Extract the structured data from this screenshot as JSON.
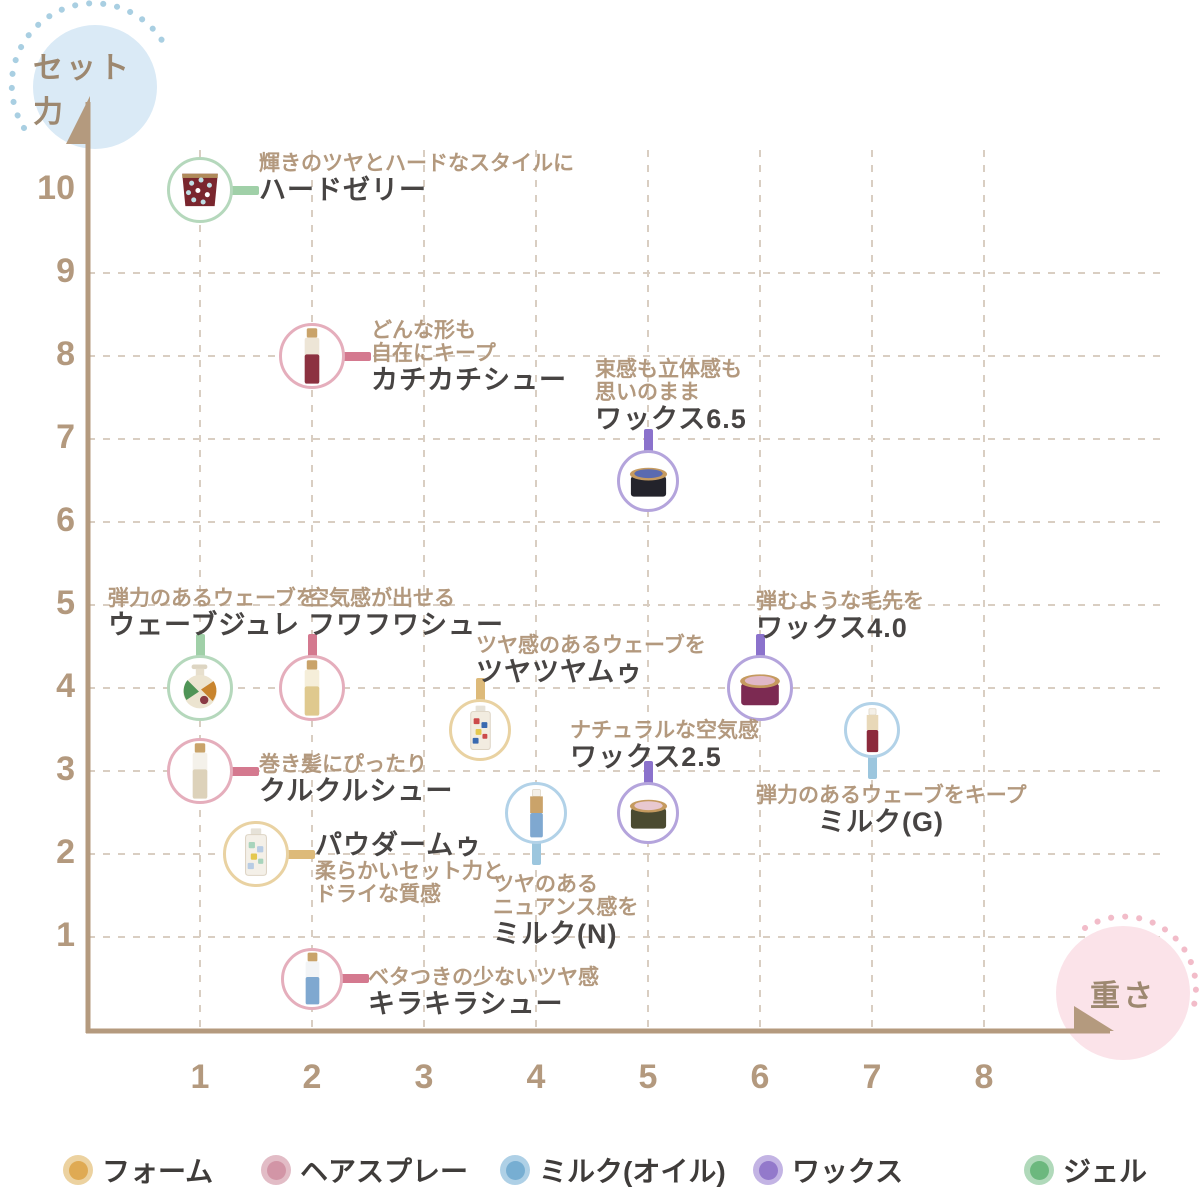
{
  "axis": {
    "y_label": "セット力",
    "x_label": "重さ",
    "y_bubble_color": "#daeaf6",
    "y_dots_color": "#a9cfe2",
    "x_bubble_color": "#fbe3e9",
    "x_dots_color": "#f2bcc9",
    "axis_color": "#b49a7e",
    "grid_color": "#d9cec2",
    "tick_color": "#b3997e",
    "y_ticks": [
      10,
      9,
      8,
      7,
      6,
      5,
      4,
      3,
      2,
      1
    ],
    "x_ticks": [
      1,
      2,
      3,
      4,
      5,
      6,
      7,
      8
    ]
  },
  "categories": {
    "foam": {
      "label": "フォーム",
      "dot": "#dfaa53",
      "halo": "#ecd2a0",
      "ring": "#e9d2a2",
      "stub": "#ddba7a"
    },
    "spray": {
      "label": "ヘアスプレー",
      "dot": "#d295a6",
      "halo": "#e2bcc6",
      "ring": "#e5aebc",
      "stub": "#d4798f"
    },
    "milk": {
      "label": "ミルク(オイル)",
      "dot": "#77aed2",
      "halo": "#aed0e6",
      "ring": "#b2d2e8",
      "stub": "#9cc6de"
    },
    "wax": {
      "label": "ワックス",
      "dot": "#9379cb",
      "halo": "#c3b4e4",
      "ring": "#b4a4dc",
      "stub": "#8b72cc"
    },
    "gel": {
      "label": "ジェル",
      "dot": "#6cb87e",
      "halo": "#b0d9ba",
      "ring": "#b5d8bc",
      "stub": "#a0d0a8"
    }
  },
  "legend_order": [
    "foam",
    "spray",
    "milk",
    "wax",
    "gel"
  ],
  "chart_data": {
    "type": "scatter",
    "title": "",
    "xlabel": "重さ",
    "ylabel": "セット力",
    "xlim": [
      0,
      9
    ],
    "ylim": [
      0,
      11
    ],
    "grid": true,
    "legend_position": "bottom",
    "points": [
      {
        "name": "ハードゼリー",
        "x": 1,
        "y": 10,
        "category": "gel",
        "desc": [
          "輝きのツヤとハードなスタイルに"
        ],
        "label_side": "right",
        "icon": {
          "shape": "cup",
          "c1": "#7a262e",
          "c2": "#bfe0e6",
          "c3": "#b08a5a"
        }
      },
      {
        "name": "カチカチシュー",
        "x": 2,
        "y": 8,
        "category": "spray",
        "desc": [
          "どんな形も",
          "自在にキープ"
        ],
        "label_side": "right",
        "icon": {
          "shape": "spray",
          "c1": "#ede5d6",
          "c2": "#8c3140",
          "c3": "#c9a36a"
        }
      },
      {
        "name": "ワックス6.5",
        "x": 5,
        "y": 6.5,
        "category": "wax",
        "desc": [
          "束感も立体感も",
          "思いのまま"
        ],
        "label_side": "above",
        "icon": {
          "shape": "jar",
          "c1": "#23232b",
          "c2": "#5a6ab0",
          "c3": "#c59a5f"
        }
      },
      {
        "name": "ウェーブジュレ",
        "x": 1,
        "y": 4,
        "category": "gel",
        "desc": [
          "弾力のあるウェーブを"
        ],
        "label_side": "above",
        "icon": {
          "shape": "pump",
          "c1": "#4f9456",
          "c2": "#c8842e",
          "c3": "#ece4d0"
        }
      },
      {
        "name": "フワフワシュー",
        "x": 2,
        "y": 4,
        "category": "spray",
        "desc": [
          "空気感が出せる"
        ],
        "label_side": "above",
        "icon": {
          "shape": "spray",
          "c1": "#f5eed9",
          "c2": "#dfc98e",
          "c3": "#c9a36a"
        }
      },
      {
        "name": "ツヤツヤムゥ",
        "x": 3.5,
        "y": 3.5,
        "category": "foam",
        "desc": [
          "ツヤ感のあるウェーブを"
        ],
        "label_side": "above",
        "icon": {
          "shape": "bottle",
          "c1": "#f2ece0",
          "c2": "#cc4a4a",
          "c3": "#3a6ab0"
        }
      },
      {
        "name": "ワックス4.0",
        "x": 6,
        "y": 4,
        "category": "wax",
        "desc": [
          "弾むような毛先を"
        ],
        "label_side": "above",
        "icon": {
          "shape": "jar",
          "c1": "#7c2a52",
          "c2": "#e0b8c8",
          "c3": "#c59a5f"
        }
      },
      {
        "name": "ミルク(G)",
        "x": 7,
        "y": 3.5,
        "category": "milk",
        "desc": [
          "弾力のあるウェーブをキープ"
        ],
        "label_side": "below",
        "icon": {
          "shape": "slim",
          "c1": "#e8d8b8",
          "c2": "#8c2a3c",
          "c3": "#f4f0e8"
        }
      },
      {
        "name": "クルクルシュー",
        "x": 1,
        "y": 3,
        "category": "spray",
        "desc": [
          "巻き髪にぴったり"
        ],
        "label_side": "right",
        "icon": {
          "shape": "spray",
          "c1": "#f4f1ea",
          "c2": "#ddd2ba",
          "c3": "#c9a36a"
        }
      },
      {
        "name": "ワックス2.5",
        "x": 5,
        "y": 2.5,
        "category": "wax",
        "desc": [
          "ナチュラルな空気感"
        ],
        "label_side": "above",
        "icon": {
          "shape": "jar",
          "c1": "#4a4a30",
          "c2": "#e8c8d0",
          "c3": "#c59a5f"
        }
      },
      {
        "name": "パウダームゥ",
        "x": 1.5,
        "y": 2,
        "category": "foam",
        "desc": [
          "柔らかいセット力と",
          "ドライな質感"
        ],
        "label_side": "right",
        "name_first": true,
        "icon": {
          "shape": "bottle",
          "c1": "#f4f0e8",
          "c2": "#a8d4bc",
          "c3": "#b8cce4"
        }
      },
      {
        "name": "ミルク(N)",
        "x": 4,
        "y": 2.5,
        "category": "milk",
        "desc": [
          "ツヤのある",
          "ニュアンス感を"
        ],
        "label_side": "below",
        "icon": {
          "shape": "slim",
          "c1": "#caa36a",
          "c2": "#7fa8d0",
          "c3": "#f4f0e8"
        }
      },
      {
        "name": "キラキラシュー",
        "x": 2,
        "y": 0.5,
        "category": "spray",
        "desc": [
          "ベタつきの少ないツヤ感"
        ],
        "label_side": "right",
        "icon": {
          "shape": "spray",
          "c1": "#f2f4f6",
          "c2": "#7fa8d0",
          "c3": "#c9a36a"
        }
      }
    ]
  }
}
